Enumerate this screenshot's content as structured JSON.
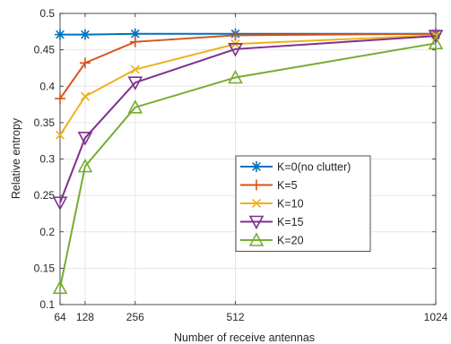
{
  "chart_data": {
    "type": "line",
    "title": "",
    "xlabel": "Number of receive antennas",
    "ylabel": "Relative entropy",
    "x": [
      64,
      128,
      256,
      512,
      1024
    ],
    "xticks": [
      "64",
      "128",
      "256",
      "512",
      "1024"
    ],
    "xlim": [
      64,
      1024
    ],
    "ylim": [
      0.1,
      0.5
    ],
    "yticks": [
      "0.1",
      "0.15",
      "0.2",
      "0.25",
      "0.3",
      "0.35",
      "0.4",
      "0.45",
      "0.5"
    ],
    "grid": true,
    "legend_position": "center-right",
    "series": [
      {
        "name": "K=0(no clutter)",
        "color": "#0072BD",
        "marker": "asterisk",
        "values": [
          0.471,
          0.471,
          0.472,
          0.472,
          0.472
        ]
      },
      {
        "name": "K=5",
        "color": "#D95319",
        "marker": "plus",
        "values": [
          0.383,
          0.432,
          0.461,
          0.47,
          0.472
        ]
      },
      {
        "name": "K=10",
        "color": "#EDB120",
        "marker": "x",
        "values": [
          0.333,
          0.386,
          0.423,
          0.458,
          0.47
        ]
      },
      {
        "name": "K=15",
        "color": "#7E2F8E",
        "marker": "triangle-down",
        "values": [
          0.24,
          0.329,
          0.405,
          0.451,
          0.469
        ]
      },
      {
        "name": "K=20",
        "color": "#77AC30",
        "marker": "triangle-up",
        "values": [
          0.123,
          0.29,
          0.371,
          0.412,
          0.459
        ]
      }
    ]
  }
}
